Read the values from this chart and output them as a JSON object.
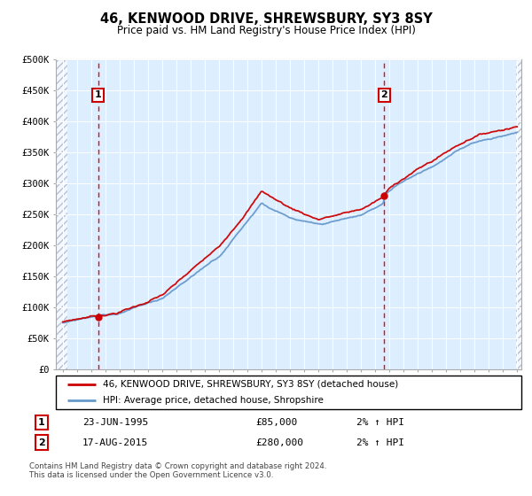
{
  "title": "46, KENWOOD DRIVE, SHREWSBURY, SY3 8SY",
  "subtitle": "Price paid vs. HM Land Registry's House Price Index (HPI)",
  "legend_line1": "46, KENWOOD DRIVE, SHREWSBURY, SY3 8SY (detached house)",
  "legend_line2": "HPI: Average price, detached house, Shropshire",
  "sale1_date": "23-JUN-1995",
  "sale1_price": 85000,
  "sale1_label": "2% ↑ HPI",
  "sale2_date": "17-AUG-2015",
  "sale2_price": 280000,
  "sale2_label": "2% ↑ HPI",
  "footer": "Contains HM Land Registry data © Crown copyright and database right 2024.\nThis data is licensed under the Open Government Licence v3.0.",
  "hpi_color": "#6699cc",
  "price_color": "#cc0000",
  "sale_marker_color": "#cc0000",
  "vline_color": "#ff0000",
  "bg_color": "#ddeeff",
  "ylim": [
    0,
    500000
  ],
  "yticks": [
    0,
    50000,
    100000,
    150000,
    200000,
    250000,
    300000,
    350000,
    400000,
    450000,
    500000
  ],
  "start_year": 1993,
  "end_year": 2025,
  "sale1_year": 1995.47,
  "sale2_year": 2015.63
}
